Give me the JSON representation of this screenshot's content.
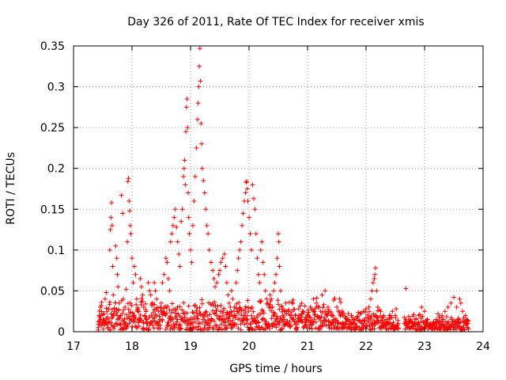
{
  "chart_data": {
    "type": "scatter",
    "title": "Day 326 of 2011, Rate Of TEC Index for receiver xmis",
    "xlabel": "GPS time / hours",
    "ylabel": "ROTI / TECUs",
    "xlim": [
      17,
      24
    ],
    "ylim": [
      0,
      0.35
    ],
    "xticks": [
      17,
      18,
      19,
      20,
      21,
      22,
      23,
      24
    ],
    "xtick_labels": [
      "17",
      "18",
      "19",
      "20",
      "21",
      "22",
      "23",
      "24"
    ],
    "yticks": [
      0,
      0.05,
      0.1,
      0.15,
      0.2,
      0.25,
      0.3,
      0.35
    ],
    "ytick_labels": [
      "0",
      "0.05",
      "0.1",
      "0.15",
      "0.2",
      "0.25",
      "0.3",
      "0.35"
    ],
    "grid": true,
    "marker": "plus",
    "series": [
      {
        "name": "ROTI",
        "color": "#ff0000",
        "points": [
          [
            17.42,
            0.005
          ],
          [
            17.43,
            0.012
          ],
          [
            17.44,
            0.02
          ],
          [
            17.45,
            0.008
          ],
          [
            17.46,
            0.03
          ],
          [
            17.47,
            0.015
          ],
          [
            17.48,
            0.036
          ],
          [
            17.5,
            0.01
          ],
          [
            17.52,
            0.022
          ],
          [
            17.54,
            0.04
          ],
          [
            17.56,
            0.048
          ],
          [
            17.58,
            0.018
          ],
          [
            17.6,
            0.028
          ],
          [
            17.62,
            0.1
          ],
          [
            17.63,
            0.125
          ],
          [
            17.64,
            0.14
          ],
          [
            17.65,
            0.158
          ],
          [
            17.66,
            0.13
          ],
          [
            17.67,
            0.08
          ],
          [
            17.68,
            0.045
          ],
          [
            17.7,
            0.025
          ],
          [
            17.72,
            0.105
          ],
          [
            17.74,
            0.09
          ],
          [
            17.75,
            0.07
          ],
          [
            17.76,
            0.055
          ],
          [
            17.78,
            0.035
          ],
          [
            17.8,
            0.02
          ],
          [
            17.82,
            0.167
          ],
          [
            17.84,
            0.145
          ],
          [
            17.85,
            0.04
          ],
          [
            17.86,
            0.012
          ],
          [
            17.88,
            0.03
          ],
          [
            17.9,
            0.052
          ],
          [
            17.92,
            0.11
          ],
          [
            17.93,
            0.184
          ],
          [
            17.94,
            0.188
          ],
          [
            17.95,
            0.16
          ],
          [
            17.96,
            0.148
          ],
          [
            17.97,
            0.13
          ],
          [
            17.98,
            0.12
          ],
          [
            18.0,
            0.09
          ],
          [
            18.02,
            0.06
          ],
          [
            18.04,
            0.08
          ],
          [
            18.06,
            0.07
          ],
          [
            18.08,
            0.04
          ],
          [
            18.1,
            0.025
          ],
          [
            18.12,
            0.015
          ],
          [
            18.14,
            0.065
          ],
          [
            18.16,
            0.055
          ],
          [
            18.18,
            0.045
          ],
          [
            18.2,
            0.03
          ],
          [
            18.22,
            0.02
          ],
          [
            18.25,
            0.01
          ],
          [
            18.28,
            0.06
          ],
          [
            18.3,
            0.05
          ],
          [
            18.32,
            0.045
          ],
          [
            18.35,
            0.035
          ],
          [
            18.38,
            0.06
          ],
          [
            18.4,
            0.05
          ],
          [
            18.42,
            0.04
          ],
          [
            18.45,
            0.025
          ],
          [
            18.48,
            0.015
          ],
          [
            18.5,
            0.035
          ],
          [
            18.52,
            0.06
          ],
          [
            18.55,
            0.07
          ],
          [
            18.58,
            0.09
          ],
          [
            18.6,
            0.085
          ],
          [
            18.62,
            0.065
          ],
          [
            18.64,
            0.05
          ],
          [
            18.66,
            0.11
          ],
          [
            18.68,
            0.12
          ],
          [
            18.7,
            0.13
          ],
          [
            18.72,
            0.14
          ],
          [
            18.74,
            0.15
          ],
          [
            18.76,
            0.128
          ],
          [
            18.78,
            0.11
          ],
          [
            18.8,
            0.095
          ],
          [
            18.82,
            0.08
          ],
          [
            18.84,
            0.135
          ],
          [
            18.86,
            0.15
          ],
          [
            18.88,
            0.19
          ],
          [
            18.89,
            0.2
          ],
          [
            18.9,
            0.21
          ],
          [
            18.91,
            0.18
          ],
          [
            18.92,
            0.245
          ],
          [
            18.93,
            0.275
          ],
          [
            18.94,
            0.285
          ],
          [
            18.95,
            0.25
          ],
          [
            18.96,
            0.17
          ],
          [
            18.97,
            0.14
          ],
          [
            18.98,
            0.12
          ],
          [
            19.0,
            0.1
          ],
          [
            19.02,
            0.085
          ],
          [
            19.04,
            0.13
          ],
          [
            19.06,
            0.16
          ],
          [
            19.08,
            0.19
          ],
          [
            19.1,
            0.225
          ],
          [
            19.12,
            0.26
          ],
          [
            19.13,
            0.28
          ],
          [
            19.14,
            0.3
          ],
          [
            19.15,
            0.325
          ],
          [
            19.16,
            0.347
          ],
          [
            19.17,
            0.307
          ],
          [
            19.18,
            0.255
          ],
          [
            19.19,
            0.23
          ],
          [
            19.2,
            0.2
          ],
          [
            19.22,
            0.185
          ],
          [
            19.24,
            0.17
          ],
          [
            19.26,
            0.15
          ],
          [
            19.28,
            0.13
          ],
          [
            19.3,
            0.12
          ],
          [
            19.32,
            0.1
          ],
          [
            19.35,
            0.085
          ],
          [
            19.38,
            0.075
          ],
          [
            19.4,
            0.065
          ],
          [
            19.42,
            0.055
          ],
          [
            19.45,
            0.06
          ],
          [
            19.48,
            0.07
          ],
          [
            19.5,
            0.075
          ],
          [
            19.52,
            0.085
          ],
          [
            19.55,
            0.09
          ],
          [
            19.58,
            0.095
          ],
          [
            19.6,
            0.08
          ],
          [
            19.62,
            0.06
          ],
          [
            19.64,
            0.045
          ],
          [
            19.66,
            0.035
          ],
          [
            19.68,
            0.03
          ],
          [
            19.7,
            0.05
          ],
          [
            19.72,
            0.04
          ],
          [
            19.75,
            0.03
          ],
          [
            19.78,
            0.06
          ],
          [
            19.8,
            0.075
          ],
          [
            19.82,
            0.09
          ],
          [
            19.84,
            0.1
          ],
          [
            19.86,
            0.11
          ],
          [
            19.88,
            0.13
          ],
          [
            19.9,
            0.145
          ],
          [
            19.92,
            0.16
          ],
          [
            19.94,
            0.17
          ],
          [
            19.95,
            0.183
          ],
          [
            19.96,
            0.184
          ],
          [
            19.97,
            0.175
          ],
          [
            19.98,
            0.16
          ],
          [
            20.0,
            0.14
          ],
          [
            20.02,
            0.12
          ],
          [
            20.04,
            0.1
          ],
          [
            20.06,
            0.18
          ],
          [
            20.08,
            0.163
          ],
          [
            20.1,
            0.15
          ],
          [
            20.12,
            0.12
          ],
          [
            20.14,
            0.09
          ],
          [
            20.16,
            0.07
          ],
          [
            20.18,
            0.06
          ],
          [
            20.2,
            0.1
          ],
          [
            20.22,
            0.11
          ],
          [
            20.24,
            0.085
          ],
          [
            20.26,
            0.07
          ],
          [
            20.28,
            0.05
          ],
          [
            20.3,
            0.04
          ],
          [
            20.32,
            0.035
          ],
          [
            20.34,
            0.03
          ],
          [
            20.36,
            0.045
          ],
          [
            20.38,
            0.04
          ],
          [
            20.4,
            0.03
          ],
          [
            20.42,
            0.05
          ],
          [
            20.44,
            0.06
          ],
          [
            20.46,
            0.07
          ],
          [
            20.48,
            0.09
          ],
          [
            20.5,
            0.12
          ],
          [
            20.51,
            0.11
          ],
          [
            20.52,
            0.08
          ],
          [
            20.54,
            0.05
          ],
          [
            20.56,
            0.03
          ],
          [
            20.58,
            0.02
          ],
          [
            20.6,
            0.015
          ],
          [
            20.65,
            0.01
          ],
          [
            20.7,
            0.02
          ],
          [
            20.75,
            0.015
          ],
          [
            20.8,
            0.012
          ],
          [
            20.85,
            0.02
          ],
          [
            20.9,
            0.018
          ],
          [
            20.95,
            0.015
          ],
          [
            21.0,
            0.02
          ],
          [
            21.05,
            0.03
          ],
          [
            21.1,
            0.04
          ],
          [
            21.15,
            0.035
          ],
          [
            21.2,
            0.03
          ],
          [
            21.25,
            0.045
          ],
          [
            21.3,
            0.05
          ],
          [
            21.35,
            0.03
          ],
          [
            21.4,
            0.02
          ],
          [
            21.45,
            0.015
          ],
          [
            21.5,
            0.03
          ],
          [
            21.55,
            0.04
          ],
          [
            21.6,
            0.02
          ],
          [
            21.65,
            0.01
          ],
          [
            21.7,
            0.015
          ],
          [
            21.75,
            0.02
          ],
          [
            21.8,
            0.015
          ],
          [
            21.85,
            0.018
          ],
          [
            21.9,
            0.022
          ],
          [
            21.95,
            0.025
          ],
          [
            22.0,
            0.028
          ],
          [
            22.05,
            0.03
          ],
          [
            22.08,
            0.04
          ],
          [
            22.1,
            0.05
          ],
          [
            22.12,
            0.06
          ],
          [
            22.14,
            0.065
          ],
          [
            22.15,
            0.07
          ],
          [
            22.16,
            0.078
          ],
          [
            22.18,
            0.05
          ],
          [
            22.2,
            0.03
          ],
          [
            22.25,
            0.025
          ],
          [
            22.3,
            0.02
          ],
          [
            22.35,
            0.015
          ],
          [
            22.4,
            0.02
          ],
          [
            22.45,
            0.025
          ],
          [
            22.5,
            0.02
          ],
          [
            22.55,
            0.01
          ],
          [
            22.68,
            0.053
          ],
          [
            22.7,
            0.01
          ],
          [
            22.75,
            0.012
          ],
          [
            22.8,
            0.01
          ],
          [
            22.85,
            0.015
          ],
          [
            22.9,
            0.02
          ],
          [
            22.95,
            0.03
          ],
          [
            23.0,
            0.025
          ],
          [
            23.05,
            0.015
          ],
          [
            23.1,
            0.01
          ],
          [
            23.15,
            0.012
          ],
          [
            23.2,
            0.015
          ],
          [
            23.25,
            0.018
          ],
          [
            23.3,
            0.02
          ],
          [
            23.35,
            0.025
          ],
          [
            23.4,
            0.03
          ],
          [
            23.45,
            0.035
          ],
          [
            23.5,
            0.042
          ],
          [
            23.55,
            0.03
          ],
          [
            23.6,
            0.04
          ],
          [
            23.62,
            0.035
          ],
          [
            23.65,
            0.025
          ],
          [
            23.7,
            0.02
          ],
          [
            23.72,
            0.015
          ],
          [
            23.74,
            0.01
          ]
        ],
        "baseline_band": {
          "segments": [
            [
              17.42,
              21.6
            ],
            [
              21.6,
              22.55
            ],
            [
              22.65,
              23.75
            ]
          ],
          "levels": [
            0.03,
            0.02,
            0.015
          ]
        }
      }
    ]
  }
}
